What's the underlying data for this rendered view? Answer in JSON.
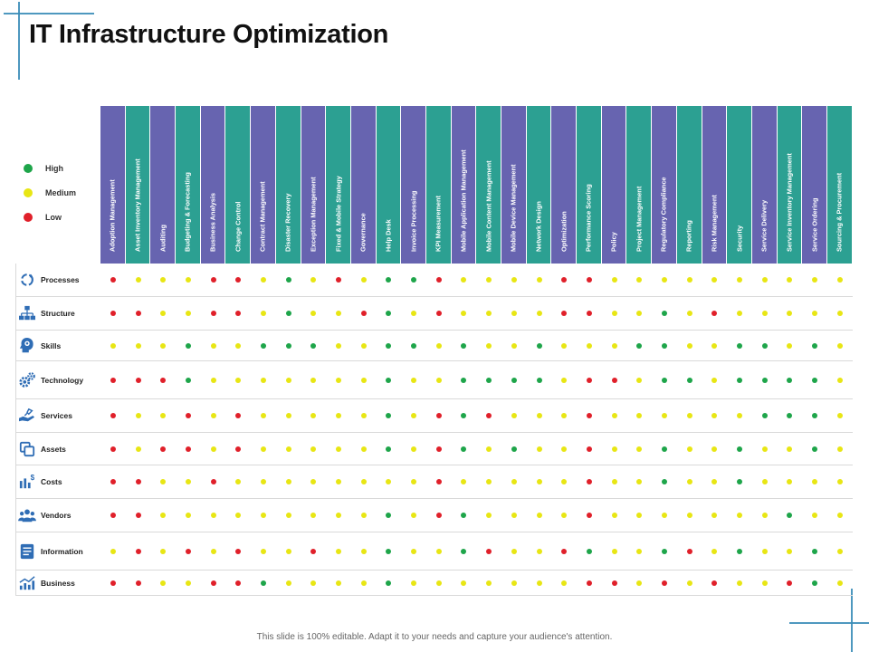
{
  "title": "IT Infrastructure Optimization",
  "footer": "This slide is 100% editable. Adapt it to your needs and capture your audience's attention.",
  "colors": {
    "high": "#1ea54a",
    "medium": "#e8e614",
    "low": "#e0202a",
    "purple": "#6764b0",
    "teal": "#2ca092"
  },
  "legend": [
    {
      "label": "High",
      "level": "H"
    },
    {
      "label": "Medium",
      "level": "M"
    },
    {
      "label": "Low",
      "level": "L"
    }
  ],
  "columns": [
    {
      "label": "Adoption Management",
      "color": "purple"
    },
    {
      "label": "Asset Inventory Management",
      "color": "teal"
    },
    {
      "label": "Auditing",
      "color": "purple"
    },
    {
      "label": "Budgeting & Forecasting",
      "color": "teal"
    },
    {
      "label": "Business Analysis",
      "color": "purple"
    },
    {
      "label": "Change Control",
      "color": "teal"
    },
    {
      "label": "Contract Management",
      "color": "purple"
    },
    {
      "label": "Disaster Recovery",
      "color": "teal"
    },
    {
      "label": "Exception Management",
      "color": "purple"
    },
    {
      "label": "Fixed & Mobile Strategy",
      "color": "teal"
    },
    {
      "label": "Governance",
      "color": "purple"
    },
    {
      "label": "Help Desk",
      "color": "teal"
    },
    {
      "label": "Invoice Processing",
      "color": "purple"
    },
    {
      "label": "KPI Measurement",
      "color": "teal"
    },
    {
      "label": "Mobile Application Management",
      "color": "purple"
    },
    {
      "label": "Mobile Content Management",
      "color": "teal"
    },
    {
      "label": "Mobile Device Management",
      "color": "purple"
    },
    {
      "label": "Network Design",
      "color": "teal"
    },
    {
      "label": "Optimization",
      "color": "purple"
    },
    {
      "label": "Performance Scoring",
      "color": "teal"
    },
    {
      "label": "Policy",
      "color": "purple"
    },
    {
      "label": "Project Management",
      "color": "teal"
    },
    {
      "label": "Regulatory Compliance",
      "color": "purple"
    },
    {
      "label": "Reporting",
      "color": "teal"
    },
    {
      "label": "Risk Management",
      "color": "purple"
    },
    {
      "label": "Security",
      "color": "teal"
    },
    {
      "label": "Service Delivery",
      "color": "purple"
    },
    {
      "label": "Service Inventory Management",
      "color": "teal"
    },
    {
      "label": "Service Ordering",
      "color": "purple"
    },
    {
      "label": "Sourcing & Procurement",
      "color": "teal"
    }
  ],
  "rows": [
    {
      "label": "Processes",
      "icon": "processes-icon",
      "values": [
        "L",
        "M",
        "M",
        "M",
        "L",
        "L",
        "M",
        "H",
        "M",
        "L",
        "M",
        "H",
        "H",
        "L",
        "M",
        "M",
        "M",
        "M",
        "L",
        "L",
        "M",
        "M",
        "M",
        "M",
        "M",
        "M",
        "M",
        "M",
        "M",
        "M"
      ]
    },
    {
      "label": "Structure",
      "icon": "structure-icon",
      "values": [
        "L",
        "L",
        "M",
        "M",
        "L",
        "L",
        "M",
        "H",
        "M",
        "M",
        "L",
        "H",
        "M",
        "L",
        "M",
        "M",
        "M",
        "M",
        "L",
        "L",
        "M",
        "M",
        "H",
        "M",
        "L",
        "M",
        "M",
        "M",
        "M",
        "M"
      ]
    },
    {
      "label": "Skills",
      "icon": "skills-icon",
      "values": [
        "M",
        "M",
        "M",
        "H",
        "M",
        "M",
        "H",
        "H",
        "H",
        "M",
        "M",
        "H",
        "H",
        "M",
        "H",
        "M",
        "M",
        "H",
        "M",
        "M",
        "M",
        "H",
        "H",
        "M",
        "M",
        "H",
        "H",
        "M",
        "H",
        "M"
      ]
    },
    {
      "label": "Technology",
      "icon": "technology-icon",
      "values": [
        "L",
        "L",
        "L",
        "H",
        "M",
        "M",
        "M",
        "M",
        "M",
        "M",
        "M",
        "H",
        "M",
        "M",
        "H",
        "H",
        "H",
        "H",
        "M",
        "L",
        "L",
        "M",
        "H",
        "H",
        "M",
        "H",
        "H",
        "H",
        "H",
        "M"
      ]
    },
    {
      "label": "Services",
      "icon": "services-icon",
      "values": [
        "L",
        "M",
        "M",
        "L",
        "M",
        "L",
        "M",
        "M",
        "M",
        "M",
        "M",
        "H",
        "M",
        "L",
        "H",
        "L",
        "M",
        "M",
        "M",
        "L",
        "M",
        "M",
        "M",
        "M",
        "M",
        "M",
        "H",
        "H",
        "H",
        "M"
      ]
    },
    {
      "label": "Assets",
      "icon": "assets-icon",
      "values": [
        "L",
        "M",
        "L",
        "L",
        "M",
        "L",
        "M",
        "M",
        "M",
        "M",
        "M",
        "H",
        "M",
        "L",
        "H",
        "M",
        "H",
        "M",
        "M",
        "L",
        "M",
        "M",
        "H",
        "M",
        "M",
        "H",
        "M",
        "M",
        "H",
        "M"
      ]
    },
    {
      "label": "Costs",
      "icon": "costs-icon",
      "values": [
        "L",
        "L",
        "M",
        "M",
        "L",
        "M",
        "M",
        "M",
        "M",
        "M",
        "M",
        "M",
        "M",
        "L",
        "M",
        "M",
        "M",
        "M",
        "M",
        "L",
        "M",
        "M",
        "H",
        "M",
        "M",
        "H",
        "M",
        "M",
        "M",
        "M"
      ]
    },
    {
      "label": "Vendors",
      "icon": "vendors-icon",
      "values": [
        "L",
        "L",
        "M",
        "M",
        "M",
        "M",
        "M",
        "M",
        "M",
        "M",
        "M",
        "H",
        "M",
        "L",
        "H",
        "M",
        "M",
        "M",
        "M",
        "L",
        "M",
        "M",
        "M",
        "M",
        "M",
        "M",
        "M",
        "H",
        "M",
        "M"
      ]
    },
    {
      "label": "Information",
      "icon": "information-icon",
      "values": [
        "M",
        "L",
        "M",
        "L",
        "M",
        "L",
        "M",
        "M",
        "L",
        "M",
        "M",
        "H",
        "M",
        "M",
        "H",
        "L",
        "M",
        "M",
        "L",
        "H",
        "M",
        "M",
        "H",
        "L",
        "M",
        "H",
        "M",
        "M",
        "H",
        "M"
      ]
    },
    {
      "label": "Business",
      "icon": "business-icon",
      "values": [
        "L",
        "L",
        "M",
        "M",
        "L",
        "L",
        "H",
        "M",
        "M",
        "M",
        "M",
        "H",
        "M",
        "M",
        "M",
        "M",
        "M",
        "M",
        "M",
        "L",
        "L",
        "M",
        "L",
        "M",
        "L",
        "M",
        "M",
        "L",
        "H",
        "M"
      ]
    }
  ]
}
